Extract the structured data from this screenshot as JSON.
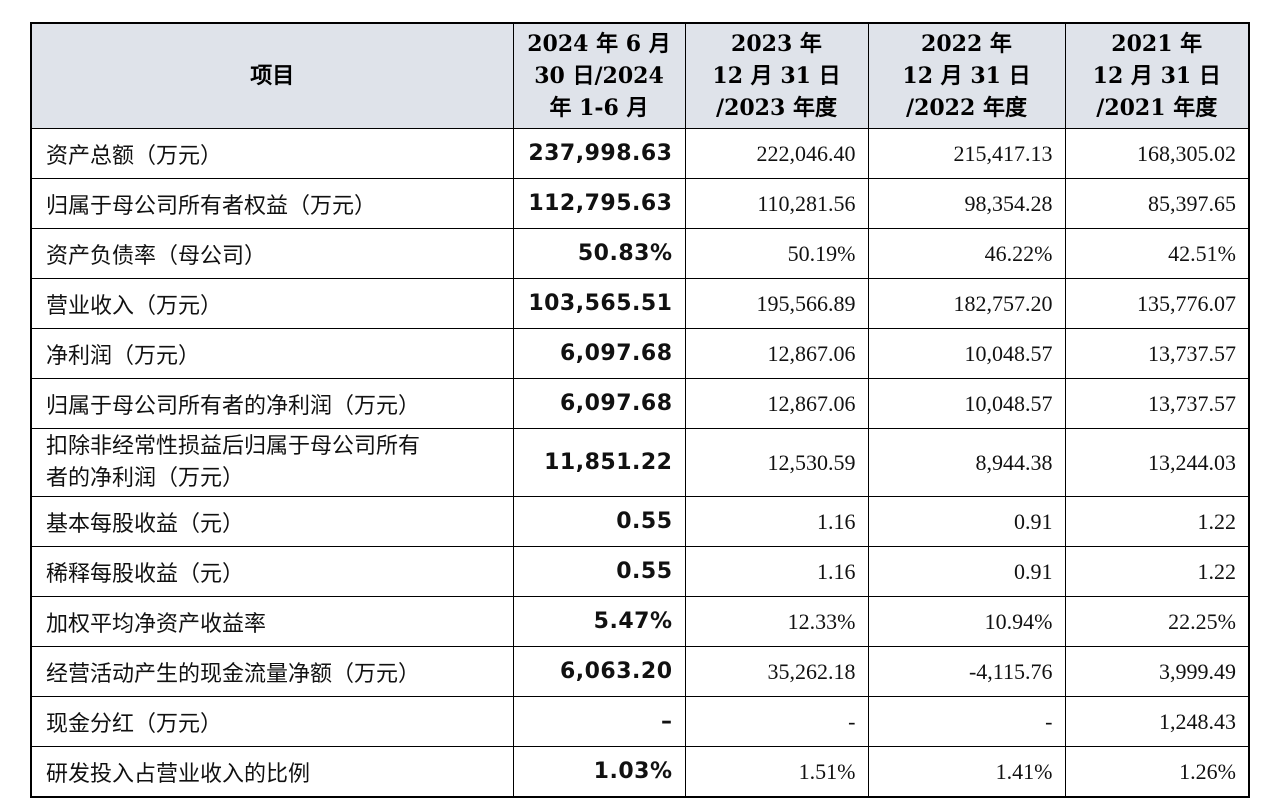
{
  "table": {
    "headers": [
      {
        "lines": [
          "项目"
        ]
      },
      {
        "lines": [
          "2024 年 6 月",
          "30 日/2024",
          "年 1-6 月"
        ]
      },
      {
        "lines": [
          "2023 年",
          "12 月 31 日",
          "/2023 年度"
        ]
      },
      {
        "lines": [
          "2022 年",
          "12 月 31 日",
          "/2022 年度"
        ]
      },
      {
        "lines": [
          "2021 年",
          "12 月 31 日",
          "/2021 年度"
        ]
      }
    ],
    "rows": [
      {
        "label": [
          "资产总额（万元）"
        ],
        "values": [
          "237,998.63",
          "222,046.40",
          "215,417.13",
          "168,305.02"
        ]
      },
      {
        "label": [
          "归属于母公司所有者权益（万元）"
        ],
        "values": [
          "112,795.63",
          "110,281.56",
          "98,354.28",
          "85,397.65"
        ]
      },
      {
        "label": [
          "资产负债率（母公司）"
        ],
        "values": [
          "50.83%",
          "50.19%",
          "46.22%",
          "42.51%"
        ]
      },
      {
        "label": [
          "营业收入（万元）"
        ],
        "values": [
          "103,565.51",
          "195,566.89",
          "182,757.20",
          "135,776.07"
        ]
      },
      {
        "label": [
          "净利润（万元）"
        ],
        "values": [
          "6,097.68",
          "12,867.06",
          "10,048.57",
          "13,737.57"
        ]
      },
      {
        "label": [
          "归属于母公司所有者的净利润（万元）"
        ],
        "values": [
          "6,097.68",
          "12,867.06",
          "10,048.57",
          "13,737.57"
        ]
      },
      {
        "label": [
          "扣除非经常性损益后归属于母公司所有",
          "者的净利润（万元）"
        ],
        "values": [
          "11,851.22",
          "12,530.59",
          "8,944.38",
          "13,244.03"
        ]
      },
      {
        "label": [
          "基本每股收益（元）"
        ],
        "values": [
          "0.55",
          "1.16",
          "0.91",
          "1.22"
        ]
      },
      {
        "label": [
          "稀释每股收益（元）"
        ],
        "values": [
          "0.55",
          "1.16",
          "0.91",
          "1.22"
        ]
      },
      {
        "label": [
          "加权平均净资产收益率"
        ],
        "values": [
          "5.47%",
          "12.33%",
          "10.94%",
          "22.25%"
        ]
      },
      {
        "label": [
          "经营活动产生的现金流量净额（万元）"
        ],
        "values": [
          "6,063.20",
          "35,262.18",
          "-4,115.76",
          "3,999.49"
        ]
      },
      {
        "label": [
          "现金分红（万元）"
        ],
        "values": [
          "–",
          "-",
          "-",
          "1,248.43"
        ]
      },
      {
        "label": [
          "研发投入占营业收入的比例"
        ],
        "values": [
          "1.03%",
          "1.51%",
          "1.41%",
          "1.26%"
        ]
      }
    ]
  }
}
